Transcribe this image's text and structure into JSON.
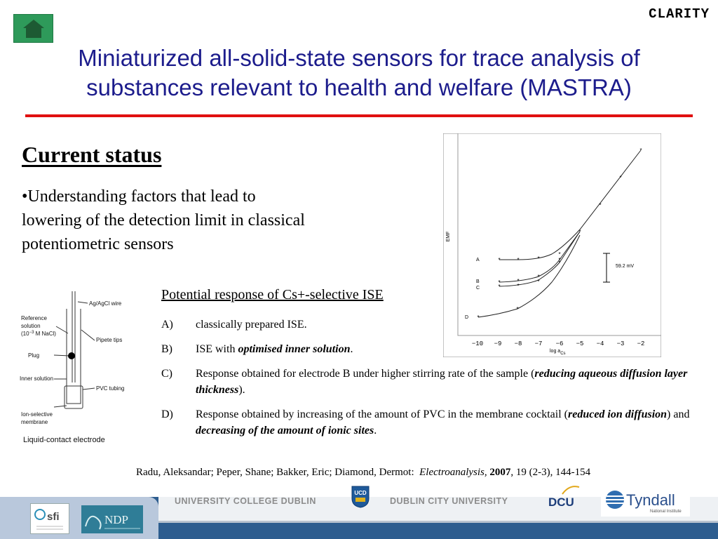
{
  "header": {
    "brand": "CLARITY",
    "title_line1": "Miniaturized all-solid-state sensors for trace analysis of",
    "title_line2": "substances relevant to health and welfare (MASTRA)"
  },
  "status": {
    "heading": "Current status",
    "bullet": "•Understanding factors that lead to lowering of the detection limit in classical potentiometric sensors"
  },
  "graph": {
    "y_axis_label": "EMF",
    "x_axis_label": "log a",
    "x_axis_sub": "Cs",
    "x_ticks": [
      "−10",
      "−9",
      "−8",
      "−7",
      "−6",
      "−5",
      "−4",
      "−3",
      "−2"
    ],
    "scale_label": "59.2 mV",
    "curve_labels": [
      "A",
      "B",
      "C",
      "D"
    ]
  },
  "electrode": {
    "labels": {
      "wire": "Ag/AgCl wire",
      "reference": "Reference",
      "solution": "solution",
      "conc": "(10",
      "conc_exp": "−3",
      "conc_tail": " M NaCl)",
      "pipete": "Pipete tips",
      "plug": "Plug",
      "inner": "Inner solution",
      "pvc": "PVC tubing",
      "ion1": "Ion-selective",
      "ion2": "membrane"
    },
    "caption": "Liquid-contact electrode"
  },
  "response": {
    "heading": "Potential response of Cs+-selective ISE",
    "items": [
      {
        "letter": "A)",
        "text": "classically prepared ISE."
      },
      {
        "letter": "B)",
        "pre": "ISE with ",
        "em": "optimised inner solution",
        "post": "."
      },
      {
        "letter": "C)",
        "pre": "Response obtained for electrode B under higher stirring rate of the sample (",
        "em": "reducing aqueous diffusion layer thickness",
        "post": ")."
      },
      {
        "letter": "D)",
        "pre": "Response obtained by increasing of the amount of PVC in the membrane cocktail (",
        "em": "reduced ion diffusion",
        "mid": ") and ",
        "em2": "decreasing of the amount of ionic sites",
        "post": "."
      }
    ]
  },
  "citation": {
    "authors": "Radu, Aleksandar; Peper, Shane; Bakker, Eric; Diamond, Dermot:",
    "journal": "Electroanalysis",
    "sep": ", ",
    "year": "2007",
    "rest": ", 19 (2-3), 144-154"
  },
  "footer": {
    "ucd": "UNIVERSITY COLLEGE DUBLIN",
    "dcu": "DUBLIN CITY UNIVERSITY",
    "dcu_logo": "DCU",
    "tyndall": "Tyndall",
    "tyndall_sub": "National Institute",
    "sfi": "sfi",
    "ndp": "NDP",
    "ucd_logo": "UCD"
  },
  "colors": {
    "title": "#1c1c8c",
    "rule": "#e01010",
    "home": "#2e9a5a",
    "footer": "#2d5d8f"
  }
}
